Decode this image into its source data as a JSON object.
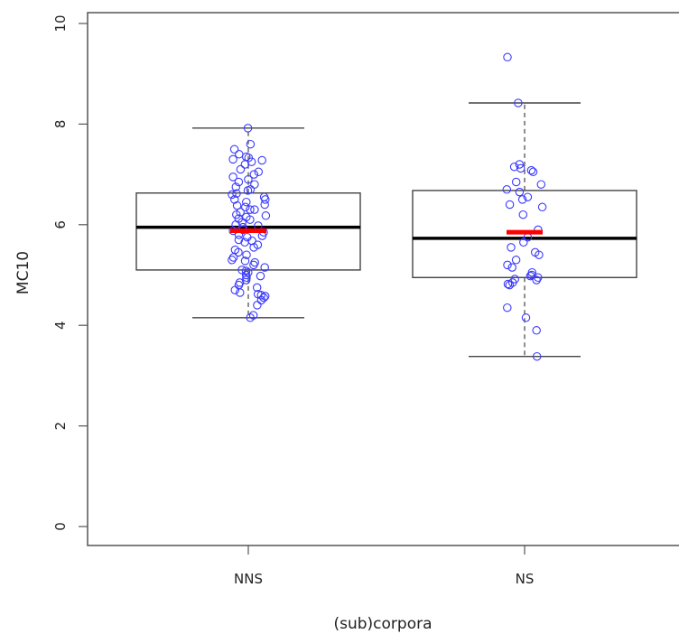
{
  "chart_data": {
    "type": "boxplot",
    "title": "",
    "xlabel": "(sub)corpora",
    "ylabel": "MC10",
    "ylim": [
      0,
      10
    ],
    "yticks": [
      "0",
      "2",
      "4",
      "6",
      "8",
      "10"
    ],
    "categories": [
      "NNS",
      "NS"
    ],
    "grid": false,
    "colors": {
      "points": "#3a3aff",
      "mean": "#ff0000",
      "median": "#000000",
      "box": "#444444"
    },
    "boxes": [
      {
        "category": "NNS",
        "whisker_low": 4.15,
        "q1": 5.1,
        "median": 5.95,
        "q3": 6.63,
        "whisker_high": 7.92,
        "mean": 5.88,
        "points": [
          7.92,
          7.6,
          7.5,
          7.4,
          7.35,
          7.33,
          7.3,
          7.28,
          7.25,
          7.2,
          7.1,
          7.05,
          7.0,
          6.95,
          6.9,
          6.85,
          6.8,
          6.75,
          6.7,
          6.68,
          6.62,
          6.6,
          6.55,
          6.5,
          6.5,
          6.45,
          6.4,
          6.38,
          6.35,
          6.3,
          6.3,
          6.25,
          6.2,
          6.18,
          6.15,
          6.12,
          6.1,
          6.05,
          6.0,
          5.98,
          5.95,
          5.9,
          5.88,
          5.85,
          5.8,
          5.78,
          5.75,
          5.7,
          5.68,
          5.65,
          5.6,
          5.55,
          5.5,
          5.45,
          5.4,
          5.35,
          5.3,
          5.28,
          5.25,
          5.2,
          5.15,
          5.1,
          5.08,
          5.05,
          5.0,
          4.98,
          4.95,
          4.9,
          4.85,
          4.8,
          4.75,
          4.7,
          4.65,
          4.62,
          4.6,
          4.58,
          4.55,
          4.5,
          4.4,
          4.2,
          4.15
        ]
      },
      {
        "category": "NS",
        "whisker_low": 3.38,
        "q1": 4.95,
        "median": 5.73,
        "q3": 6.68,
        "whisker_high": 8.42,
        "mean": 5.85,
        "points": [
          9.33,
          8.42,
          7.2,
          7.15,
          7.12,
          7.08,
          7.05,
          6.85,
          6.8,
          6.7,
          6.65,
          6.55,
          6.5,
          6.4,
          6.35,
          6.2,
          5.9,
          5.75,
          5.65,
          5.55,
          5.45,
          5.4,
          5.3,
          5.2,
          5.15,
          5.05,
          5.0,
          4.98,
          4.95,
          4.92,
          4.9,
          4.85,
          4.82,
          4.8,
          4.35,
          4.15,
          3.9,
          3.38
        ]
      }
    ]
  }
}
